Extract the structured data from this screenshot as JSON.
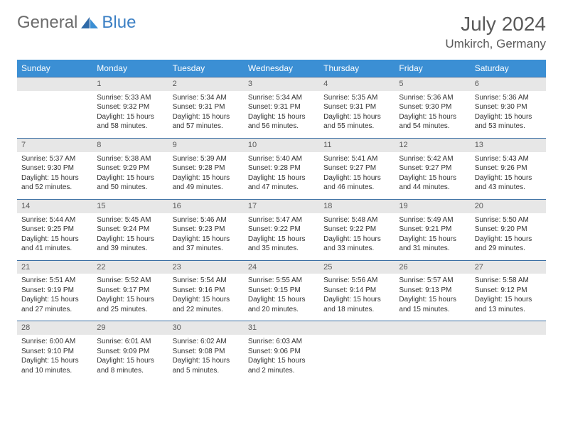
{
  "logo": {
    "text1": "General",
    "text2": "Blue"
  },
  "title": "July 2024",
  "location": "Umkirch, Germany",
  "colors": {
    "header_bg": "#3b8fd4",
    "header_text": "#ffffff",
    "daynum_bg": "#e7e7e7",
    "daynum_border": "#3b6fa4",
    "text": "#333333",
    "logo_gray": "#6b6b6b",
    "logo_blue": "#3b7fc4"
  },
  "weekdays": [
    "Sunday",
    "Monday",
    "Tuesday",
    "Wednesday",
    "Thursday",
    "Friday",
    "Saturday"
  ],
  "cells": [
    {
      "day": "",
      "lines": []
    },
    {
      "day": "1",
      "lines": [
        "Sunrise: 5:33 AM",
        "Sunset: 9:32 PM",
        "Daylight: 15 hours",
        "and 58 minutes."
      ]
    },
    {
      "day": "2",
      "lines": [
        "Sunrise: 5:34 AM",
        "Sunset: 9:31 PM",
        "Daylight: 15 hours",
        "and 57 minutes."
      ]
    },
    {
      "day": "3",
      "lines": [
        "Sunrise: 5:34 AM",
        "Sunset: 9:31 PM",
        "Daylight: 15 hours",
        "and 56 minutes."
      ]
    },
    {
      "day": "4",
      "lines": [
        "Sunrise: 5:35 AM",
        "Sunset: 9:31 PM",
        "Daylight: 15 hours",
        "and 55 minutes."
      ]
    },
    {
      "day": "5",
      "lines": [
        "Sunrise: 5:36 AM",
        "Sunset: 9:30 PM",
        "Daylight: 15 hours",
        "and 54 minutes."
      ]
    },
    {
      "day": "6",
      "lines": [
        "Sunrise: 5:36 AM",
        "Sunset: 9:30 PM",
        "Daylight: 15 hours",
        "and 53 minutes."
      ]
    },
    {
      "day": "7",
      "lines": [
        "Sunrise: 5:37 AM",
        "Sunset: 9:30 PM",
        "Daylight: 15 hours",
        "and 52 minutes."
      ]
    },
    {
      "day": "8",
      "lines": [
        "Sunrise: 5:38 AM",
        "Sunset: 9:29 PM",
        "Daylight: 15 hours",
        "and 50 minutes."
      ]
    },
    {
      "day": "9",
      "lines": [
        "Sunrise: 5:39 AM",
        "Sunset: 9:28 PM",
        "Daylight: 15 hours",
        "and 49 minutes."
      ]
    },
    {
      "day": "10",
      "lines": [
        "Sunrise: 5:40 AM",
        "Sunset: 9:28 PM",
        "Daylight: 15 hours",
        "and 47 minutes."
      ]
    },
    {
      "day": "11",
      "lines": [
        "Sunrise: 5:41 AM",
        "Sunset: 9:27 PM",
        "Daylight: 15 hours",
        "and 46 minutes."
      ]
    },
    {
      "day": "12",
      "lines": [
        "Sunrise: 5:42 AM",
        "Sunset: 9:27 PM",
        "Daylight: 15 hours",
        "and 44 minutes."
      ]
    },
    {
      "day": "13",
      "lines": [
        "Sunrise: 5:43 AM",
        "Sunset: 9:26 PM",
        "Daylight: 15 hours",
        "and 43 minutes."
      ]
    },
    {
      "day": "14",
      "lines": [
        "Sunrise: 5:44 AM",
        "Sunset: 9:25 PM",
        "Daylight: 15 hours",
        "and 41 minutes."
      ]
    },
    {
      "day": "15",
      "lines": [
        "Sunrise: 5:45 AM",
        "Sunset: 9:24 PM",
        "Daylight: 15 hours",
        "and 39 minutes."
      ]
    },
    {
      "day": "16",
      "lines": [
        "Sunrise: 5:46 AM",
        "Sunset: 9:23 PM",
        "Daylight: 15 hours",
        "and 37 minutes."
      ]
    },
    {
      "day": "17",
      "lines": [
        "Sunrise: 5:47 AM",
        "Sunset: 9:22 PM",
        "Daylight: 15 hours",
        "and 35 minutes."
      ]
    },
    {
      "day": "18",
      "lines": [
        "Sunrise: 5:48 AM",
        "Sunset: 9:22 PM",
        "Daylight: 15 hours",
        "and 33 minutes."
      ]
    },
    {
      "day": "19",
      "lines": [
        "Sunrise: 5:49 AM",
        "Sunset: 9:21 PM",
        "Daylight: 15 hours",
        "and 31 minutes."
      ]
    },
    {
      "day": "20",
      "lines": [
        "Sunrise: 5:50 AM",
        "Sunset: 9:20 PM",
        "Daylight: 15 hours",
        "and 29 minutes."
      ]
    },
    {
      "day": "21",
      "lines": [
        "Sunrise: 5:51 AM",
        "Sunset: 9:19 PM",
        "Daylight: 15 hours",
        "and 27 minutes."
      ]
    },
    {
      "day": "22",
      "lines": [
        "Sunrise: 5:52 AM",
        "Sunset: 9:17 PM",
        "Daylight: 15 hours",
        "and 25 minutes."
      ]
    },
    {
      "day": "23",
      "lines": [
        "Sunrise: 5:54 AM",
        "Sunset: 9:16 PM",
        "Daylight: 15 hours",
        "and 22 minutes."
      ]
    },
    {
      "day": "24",
      "lines": [
        "Sunrise: 5:55 AM",
        "Sunset: 9:15 PM",
        "Daylight: 15 hours",
        "and 20 minutes."
      ]
    },
    {
      "day": "25",
      "lines": [
        "Sunrise: 5:56 AM",
        "Sunset: 9:14 PM",
        "Daylight: 15 hours",
        "and 18 minutes."
      ]
    },
    {
      "day": "26",
      "lines": [
        "Sunrise: 5:57 AM",
        "Sunset: 9:13 PM",
        "Daylight: 15 hours",
        "and 15 minutes."
      ]
    },
    {
      "day": "27",
      "lines": [
        "Sunrise: 5:58 AM",
        "Sunset: 9:12 PM",
        "Daylight: 15 hours",
        "and 13 minutes."
      ]
    },
    {
      "day": "28",
      "lines": [
        "Sunrise: 6:00 AM",
        "Sunset: 9:10 PM",
        "Daylight: 15 hours",
        "and 10 minutes."
      ]
    },
    {
      "day": "29",
      "lines": [
        "Sunrise: 6:01 AM",
        "Sunset: 9:09 PM",
        "Daylight: 15 hours",
        "and 8 minutes."
      ]
    },
    {
      "day": "30",
      "lines": [
        "Sunrise: 6:02 AM",
        "Sunset: 9:08 PM",
        "Daylight: 15 hours",
        "and 5 minutes."
      ]
    },
    {
      "day": "31",
      "lines": [
        "Sunrise: 6:03 AM",
        "Sunset: 9:06 PM",
        "Daylight: 15 hours",
        "and 2 minutes."
      ]
    },
    {
      "day": "",
      "lines": []
    },
    {
      "day": "",
      "lines": []
    },
    {
      "day": "",
      "lines": []
    }
  ]
}
